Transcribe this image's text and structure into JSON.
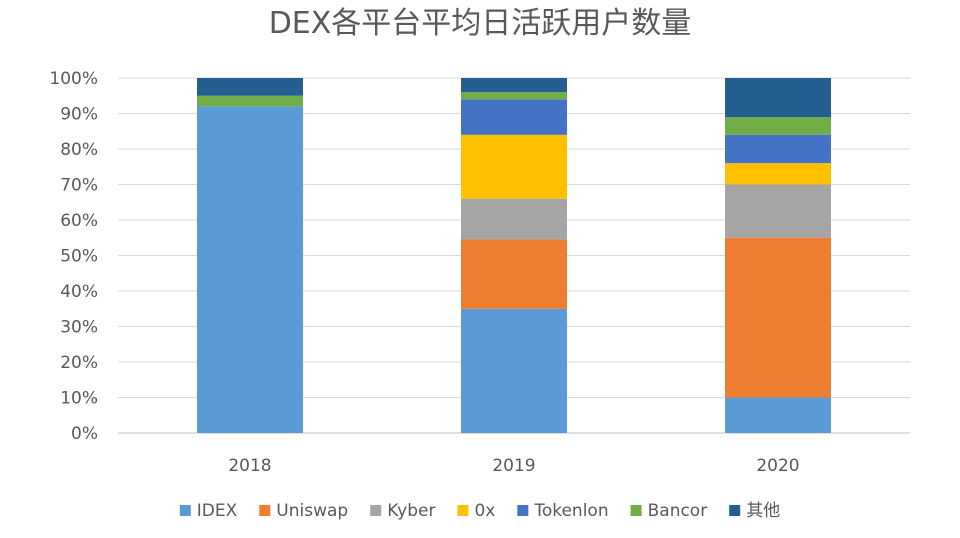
{
  "chart_data": {
    "type": "bar",
    "stacked": true,
    "title": "DEX各平台平均日活跃用户数量",
    "xlabel": "",
    "ylabel": "",
    "categories": [
      "2018",
      "2019",
      "2020"
    ],
    "ylim": [
      0,
      100
    ],
    "yticks": [
      "0%",
      "10%",
      "20%",
      "30%",
      "40%",
      "50%",
      "60%",
      "70%",
      "80%",
      "90%",
      "100%"
    ],
    "grid": true,
    "legend_position": "bottom",
    "series": [
      {
        "name": "IDEX",
        "color": "#5b9bd5",
        "values": [
          92,
          35,
          10
        ]
      },
      {
        "name": "Uniswap",
        "color": "#ed7d31",
        "values": [
          0,
          19.5,
          45
        ]
      },
      {
        "name": "Kyber",
        "color": "#a5a5a5",
        "values": [
          0,
          11.5,
          15
        ]
      },
      {
        "name": "0x",
        "color": "#ffc000",
        "values": [
          0,
          18,
          6
        ]
      },
      {
        "name": "Tokenlon",
        "color": "#4472c4",
        "values": [
          0,
          10,
          8
        ]
      },
      {
        "name": "Bancor",
        "color": "#70ad47",
        "values": [
          3,
          2,
          5
        ]
      },
      {
        "name": "其他",
        "color": "#255e91",
        "values": [
          5,
          4,
          11
        ]
      }
    ]
  }
}
